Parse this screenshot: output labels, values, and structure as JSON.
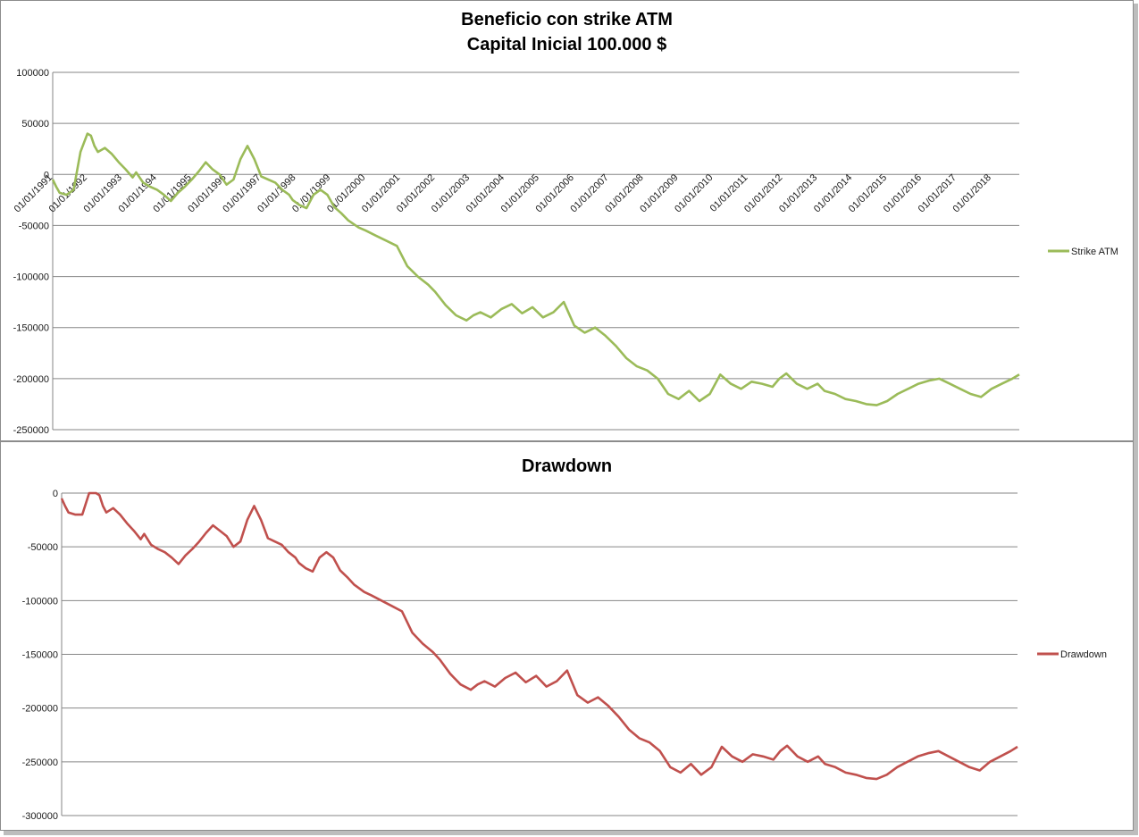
{
  "chart_data": [
    {
      "type": "line",
      "title": "Beneficio con strike ATM",
      "subtitle": "Capital Inicial 100.000 $",
      "ylim": [
        -250000,
        100000
      ],
      "yticks": [
        100000,
        50000,
        0,
        -50000,
        -100000,
        -150000,
        -200000,
        -250000
      ],
      "ytick_labels": [
        "100000",
        "50000",
        "0",
        "-50000",
        "-100000",
        "-150000",
        "-200000",
        "-250000"
      ],
      "xtick_labels": [
        "01/01/1991",
        "01/01/1992",
        "01/01/1993",
        "01/01/1994",
        "01/01/1995",
        "01/01/1996",
        "01/01/1997",
        "01/01/1998",
        "01/01/1999",
        "01/01/2000",
        "01/01/2001",
        "01/01/2002",
        "01/01/2003",
        "01/01/2004",
        "01/01/2005",
        "01/01/2006",
        "01/01/2007",
        "01/01/2008",
        "01/01/2009",
        "01/01/2010",
        "01/01/2011",
        "01/01/2012",
        "01/01/2013",
        "01/01/2014",
        "01/01/2015",
        "01/01/2016",
        "01/01/2017",
        "01/01/2018"
      ],
      "grid": true,
      "legend": "right",
      "series": [
        {
          "name": "Strike ATM",
          "color": "#9bbb59",
          "x": [
            1991.0,
            1991.1,
            1991.2,
            1991.4,
            1991.6,
            1991.8,
            1992.0,
            1992.1,
            1992.2,
            1992.3,
            1992.5,
            1992.7,
            1992.9,
            1993.1,
            1993.3,
            1993.4,
            1993.6,
            1993.8,
            1994.0,
            1994.2,
            1994.4,
            1994.6,
            1994.8,
            1995.0,
            1995.2,
            1995.4,
            1995.6,
            1995.8,
            1996.0,
            1996.2,
            1996.4,
            1996.6,
            1996.8,
            1997.0,
            1997.2,
            1997.4,
            1997.6,
            1997.8,
            1997.9,
            1998.1,
            1998.3,
            1998.5,
            1998.7,
            1998.9,
            1999.1,
            1999.3,
            1999.5,
            1999.8,
            2000.0,
            2000.3,
            2000.6,
            2000.9,
            2001.2,
            2001.5,
            2001.8,
            2002.0,
            2002.3,
            2002.6,
            2002.9,
            2003.1,
            2003.3,
            2003.6,
            2003.9,
            2004.2,
            2004.5,
            2004.8,
            2005.1,
            2005.4,
            2005.7,
            2006.0,
            2006.3,
            2006.6,
            2006.9,
            2007.2,
            2007.5,
            2007.8,
            2008.1,
            2008.4,
            2008.7,
            2009.0,
            2009.3,
            2009.6,
            2009.9,
            2010.2,
            2010.5,
            2010.8,
            2011.1,
            2011.4,
            2011.7,
            2011.9,
            2012.1,
            2012.4,
            2012.7,
            2013.0,
            2013.2,
            2013.5,
            2013.8,
            2014.1,
            2014.4,
            2014.7,
            2015.0,
            2015.3,
            2015.6,
            2015.9,
            2016.2,
            2016.5,
            2016.8,
            2017.1,
            2017.4,
            2017.7,
            2018.0,
            2018.3,
            2018.6,
            2018.8
          ],
          "values": [
            -5000,
            -12000,
            -18000,
            -20000,
            -15000,
            22000,
            40000,
            38000,
            28000,
            22000,
            26000,
            20000,
            12000,
            5000,
            -3000,
            2000,
            -8000,
            -12000,
            -15000,
            -20000,
            -26000,
            -18000,
            -12000,
            -5000,
            3000,
            12000,
            5000,
            0,
            -10000,
            -5000,
            15000,
            28000,
            15000,
            -2000,
            -5000,
            -8000,
            -15000,
            -20000,
            -25000,
            -30000,
            -33000,
            -20000,
            -15000,
            -20000,
            -32000,
            -38000,
            -45000,
            -52000,
            -55000,
            -60000,
            -65000,
            -70000,
            -90000,
            -100000,
            -108000,
            -115000,
            -128000,
            -138000,
            -143000,
            -138000,
            -135000,
            -140000,
            -132000,
            -127000,
            -136000,
            -130000,
            -140000,
            -135000,
            -125000,
            -148000,
            -155000,
            -150000,
            -158000,
            -168000,
            -180000,
            -188000,
            -192000,
            -200000,
            -215000,
            -220000,
            -212000,
            -222000,
            -215000,
            -196000,
            -205000,
            -210000,
            -203000,
            -205000,
            -208000,
            -200000,
            -195000,
            -205000,
            -210000,
            -205000,
            -212000,
            -215000,
            -220000,
            -222000,
            -225000,
            -226000,
            -222000,
            -215000,
            -210000,
            -205000,
            -202000,
            -200000,
            -205000,
            -210000,
            -215000,
            -218000,
            -210000,
            -205000,
            -200000,
            -196000
          ]
        }
      ]
    },
    {
      "type": "line",
      "title": "Drawdown",
      "ylim": [
        -300000,
        0
      ],
      "yticks": [
        0,
        -50000,
        -100000,
        -150000,
        -200000,
        -250000,
        -300000
      ],
      "ytick_labels": [
        "0",
        "-50000",
        "-100000",
        "-150000",
        "-200000",
        "-250000",
        "-300000"
      ],
      "grid": true,
      "legend": "right",
      "series": [
        {
          "name": "Drawdown",
          "color": "#c0504d",
          "x": [
            1991.0,
            1991.1,
            1991.2,
            1991.4,
            1991.6,
            1991.8,
            1992.0,
            1992.1,
            1992.2,
            1992.3,
            1992.5,
            1992.7,
            1992.9,
            1993.1,
            1993.3,
            1993.4,
            1993.6,
            1993.8,
            1994.0,
            1994.2,
            1994.4,
            1994.6,
            1994.8,
            1995.0,
            1995.2,
            1995.4,
            1995.6,
            1995.8,
            1996.0,
            1996.2,
            1996.4,
            1996.6,
            1996.8,
            1997.0,
            1997.2,
            1997.4,
            1997.6,
            1997.8,
            1997.9,
            1998.1,
            1998.3,
            1998.5,
            1998.7,
            1998.9,
            1999.1,
            1999.3,
            1999.5,
            1999.8,
            2000.0,
            2000.3,
            2000.6,
            2000.9,
            2001.2,
            2001.5,
            2001.8,
            2002.0,
            2002.3,
            2002.6,
            2002.9,
            2003.1,
            2003.3,
            2003.6,
            2003.9,
            2004.2,
            2004.5,
            2004.8,
            2005.1,
            2005.4,
            2005.7,
            2006.0,
            2006.3,
            2006.6,
            2006.9,
            2007.2,
            2007.5,
            2007.8,
            2008.1,
            2008.4,
            2008.7,
            2009.0,
            2009.3,
            2009.6,
            2009.9,
            2010.2,
            2010.5,
            2010.8,
            2011.1,
            2011.4,
            2011.7,
            2011.9,
            2012.1,
            2012.4,
            2012.7,
            2013.0,
            2013.2,
            2013.5,
            2013.8,
            2014.1,
            2014.4,
            2014.7,
            2015.0,
            2015.3,
            2015.6,
            2015.9,
            2016.2,
            2016.5,
            2016.8,
            2017.1,
            2017.4,
            2017.7,
            2018.0,
            2018.3,
            2018.6,
            2018.8
          ],
          "values": [
            -5000,
            -12000,
            -18000,
            -20000,
            -20000,
            0,
            0,
            -2000,
            -12000,
            -18000,
            -14000,
            -20000,
            -28000,
            -35000,
            -43000,
            -38000,
            -48000,
            -52000,
            -55000,
            -60000,
            -66000,
            -58000,
            -52000,
            -45000,
            -37000,
            -30000,
            -35000,
            -40000,
            -50000,
            -45000,
            -25000,
            -12000,
            -25000,
            -42000,
            -45000,
            -48000,
            -55000,
            -60000,
            -65000,
            -70000,
            -73000,
            -60000,
            -55000,
            -60000,
            -72000,
            -78000,
            -85000,
            -92000,
            -95000,
            -100000,
            -105000,
            -110000,
            -130000,
            -140000,
            -148000,
            -155000,
            -168000,
            -178000,
            -183000,
            -178000,
            -175000,
            -180000,
            -172000,
            -167000,
            -176000,
            -170000,
            -180000,
            -175000,
            -165000,
            -188000,
            -195000,
            -190000,
            -198000,
            -208000,
            -220000,
            -228000,
            -232000,
            -240000,
            -255000,
            -260000,
            -252000,
            -262000,
            -255000,
            -236000,
            -245000,
            -250000,
            -243000,
            -245000,
            -248000,
            -240000,
            -235000,
            -245000,
            -250000,
            -245000,
            -252000,
            -255000,
            -260000,
            -262000,
            -265000,
            -266000,
            -262000,
            -255000,
            -250000,
            -245000,
            -242000,
            -240000,
            -245000,
            -250000,
            -255000,
            -258000,
            -250000,
            -245000,
            -240000,
            -236000
          ]
        }
      ]
    }
  ]
}
